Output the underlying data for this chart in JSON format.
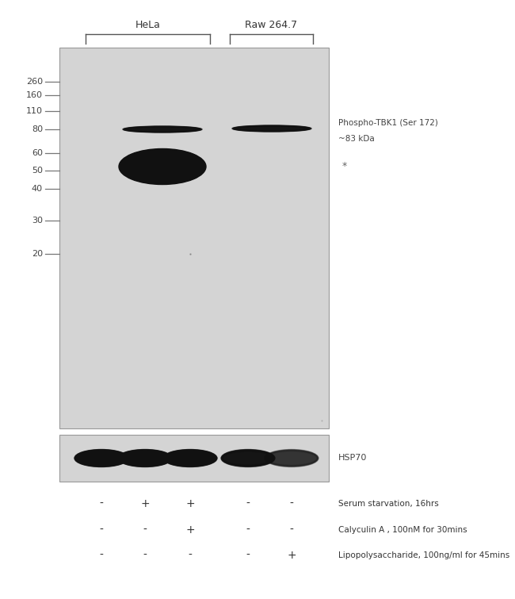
{
  "fig_bg": "#ffffff",
  "panel_bg": "#d4d4d4",
  "panel_border_color": "#999999",
  "mw_labels": [
    260,
    160,
    110,
    80,
    60,
    50,
    40,
    30,
    20
  ],
  "cell_label_hela": "HeLa",
  "cell_label_raw": "Raw 264.7",
  "annotation_phospho_line1": "Phospho-TBK1 (Ser 172)",
  "annotation_phospho_line2": "~83 kDa",
  "annotation_star": "*",
  "annotation_hsp70": "HSP70",
  "treatment_rows": [
    {
      "signs": [
        "-",
        "+",
        "+",
        "-",
        "-"
      ],
      "label": "Serum starvation, 16hrs"
    },
    {
      "signs": [
        "-",
        "-",
        "+",
        "-",
        "-"
      ],
      "label": "Calyculin A , 100nM for 30mins"
    },
    {
      "signs": [
        "-",
        "-",
        "-",
        "-",
        "+"
      ],
      "label": "Lipopolysaccharide, 100ng/ml for 45mins"
    }
  ],
  "band_color_dark": "#111111",
  "band_color_mid": "#333333",
  "band_color_light": "#888888",
  "hsp_bg": "#d4d4d4"
}
